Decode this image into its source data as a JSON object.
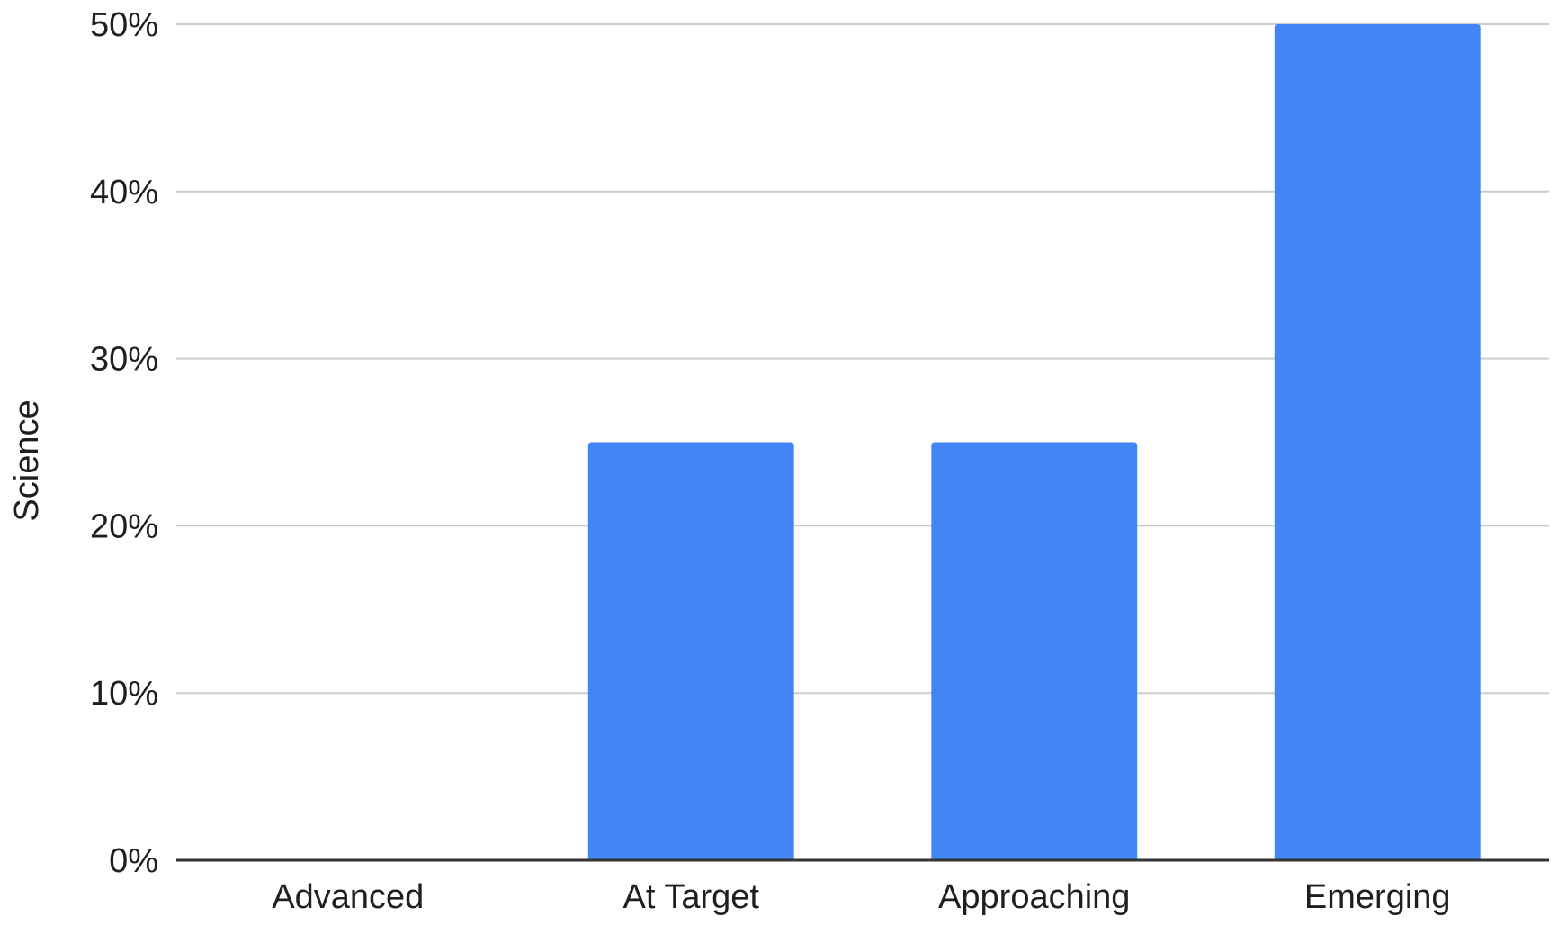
{
  "chart_data": {
    "type": "bar",
    "title": "",
    "xlabel": "",
    "ylabel": "Science",
    "categories": [
      "Advanced",
      "At Target",
      "Approaching",
      "Emerging"
    ],
    "series": [
      {
        "values": [
          0,
          25,
          25,
          50
        ]
      }
    ],
    "ylim": [
      0,
      50
    ],
    "yticks": [
      0,
      10,
      20,
      30,
      40,
      50
    ],
    "ytick_labels": [
      "0%",
      "10%",
      "20%",
      "30%",
      "40%",
      "50%"
    ],
    "grid": true,
    "legend": "none",
    "colors": {
      "bar": "#4285f4",
      "gridline": "#cccccc",
      "baseline": "#333333",
      "text": "#1f1f1f"
    }
  }
}
